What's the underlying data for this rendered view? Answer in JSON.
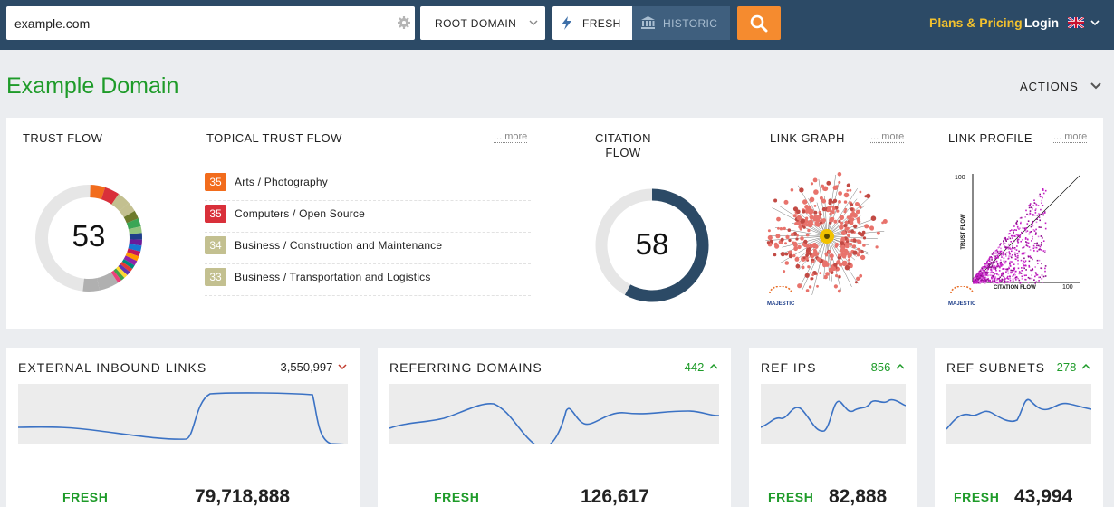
{
  "topbar": {
    "search": {
      "value": "example.com",
      "placeholder": ""
    },
    "scope": {
      "selected": "ROOT DOMAIN"
    },
    "index_fresh": "FRESH",
    "index_historic": "HISTORIC",
    "plans_label": "Plans & Pricing",
    "login_label": "Login",
    "colors": {
      "bar": "#2c4a66",
      "accent": "#f58b2f",
      "plans": "#f2c12e"
    }
  },
  "page": {
    "title": "Example Domain",
    "actions_label": "ACTIONS",
    "title_color": "#1e9b29"
  },
  "metrics": {
    "trust_flow": {
      "title": "TRUST FLOW",
      "value": "53"
    },
    "topical_trust_flow": {
      "title": "TOPICAL TRUST FLOW",
      "more": "... more",
      "items": [
        {
          "score": "35",
          "label": "Arts / Photography",
          "color": "#f26c1c"
        },
        {
          "score": "35",
          "label": "Computers / Open Source",
          "color": "#d9303a"
        },
        {
          "score": "34",
          "label": "Business / Construction and Maintenance",
          "color": "#c3c090"
        },
        {
          "score": "33",
          "label": "Business / Transportation and Logistics",
          "color": "#c3c090"
        }
      ]
    },
    "citation_flow": {
      "title_line1": "CITATION",
      "title_line2": "FLOW",
      "value": "58",
      "fraction": 0.58
    },
    "link_graph": {
      "title": "LINK GRAPH",
      "more": "... more",
      "logo": "MAJESTIC"
    },
    "link_profile": {
      "title": "LINK PROFILE",
      "more": "... more",
      "logo": "MAJESTIC",
      "y_label": "TRUST FLOW",
      "x_label": "CITATION FLOW",
      "y_max": "100",
      "x_max": "100"
    }
  },
  "cards": [
    {
      "title": "EXTERNAL INBOUND LINKS",
      "value": "3,550,997",
      "direction": "down",
      "fresh_label": "FRESH",
      "total": "79,718,888"
    },
    {
      "title": "REFERRING DOMAINS",
      "value": "442",
      "direction": "up",
      "fresh_label": "FRESH",
      "total": "126,617"
    },
    {
      "title": "REF IPS",
      "value": "856",
      "direction": "up",
      "fresh_label": "FRESH",
      "total": "82,888"
    },
    {
      "title": "REF SUBNETS",
      "value": "278",
      "direction": "up",
      "fresh_label": "FRESH",
      "total": "43,994"
    }
  ],
  "status_colors": {
    "up": "#1e9b29",
    "down": "#c0392b"
  }
}
